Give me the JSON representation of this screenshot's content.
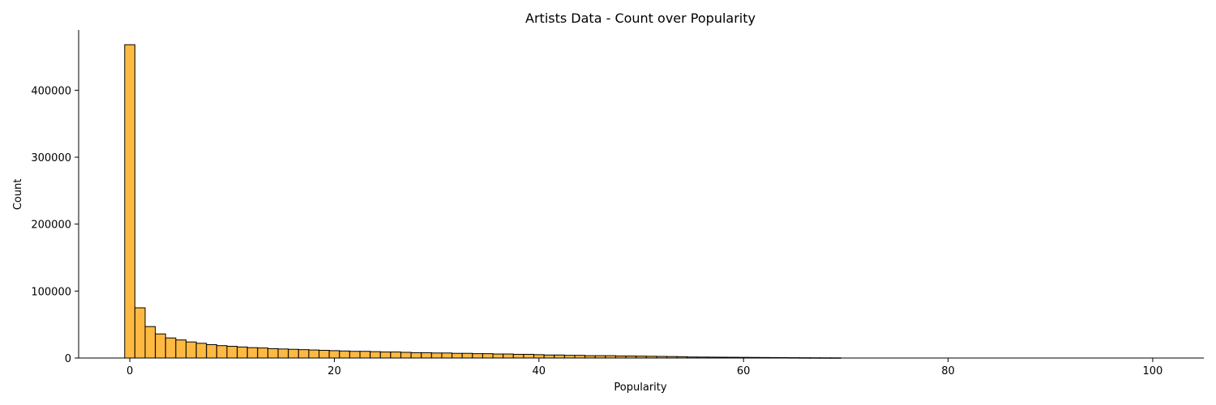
{
  "chart_data": {
    "type": "bar",
    "title": "Artists Data - Count over Popularity",
    "xlabel": "Popularity",
    "ylabel": "Count",
    "xlim": [
      -5,
      105
    ],
    "ylim": [
      0,
      490000
    ],
    "xticks": [
      0,
      20,
      40,
      60,
      80,
      100
    ],
    "yticks": [
      0,
      100000,
      200000,
      300000,
      400000
    ],
    "bar_color": "#fdb941",
    "edge_color": "#000000",
    "grid": false,
    "bin_width": 1,
    "bin_start": -0.5,
    "values": [
      468000,
      75000,
      47000,
      36000,
      30000,
      27000,
      24000,
      22000,
      20000,
      18500,
      17500,
      16500,
      15500,
      15000,
      14000,
      13500,
      13000,
      12500,
      12000,
      11500,
      11000,
      10500,
      10000,
      10000,
      9500,
      9000,
      9000,
      8500,
      8000,
      8000,
      7500,
      7500,
      7000,
      7000,
      6500,
      6500,
      6000,
      6000,
      5500,
      5500,
      5000,
      4500,
      4500,
      4000,
      4000,
      3500,
      3500,
      3500,
      3000,
      3000,
      2800,
      2600,
      2400,
      2200,
      2000,
      1500,
      1400,
      1300,
      1200,
      1100,
      1000,
      900,
      800,
      700,
      600,
      500,
      400,
      350,
      300,
      250,
      0,
      0,
      0,
      0,
      0,
      0,
      0,
      0,
      0,
      0,
      0,
      0,
      0,
      0,
      0,
      0,
      0,
      0,
      0,
      0,
      0,
      0,
      0,
      0,
      0,
      0,
      0,
      0,
      0,
      0,
      0
    ]
  }
}
